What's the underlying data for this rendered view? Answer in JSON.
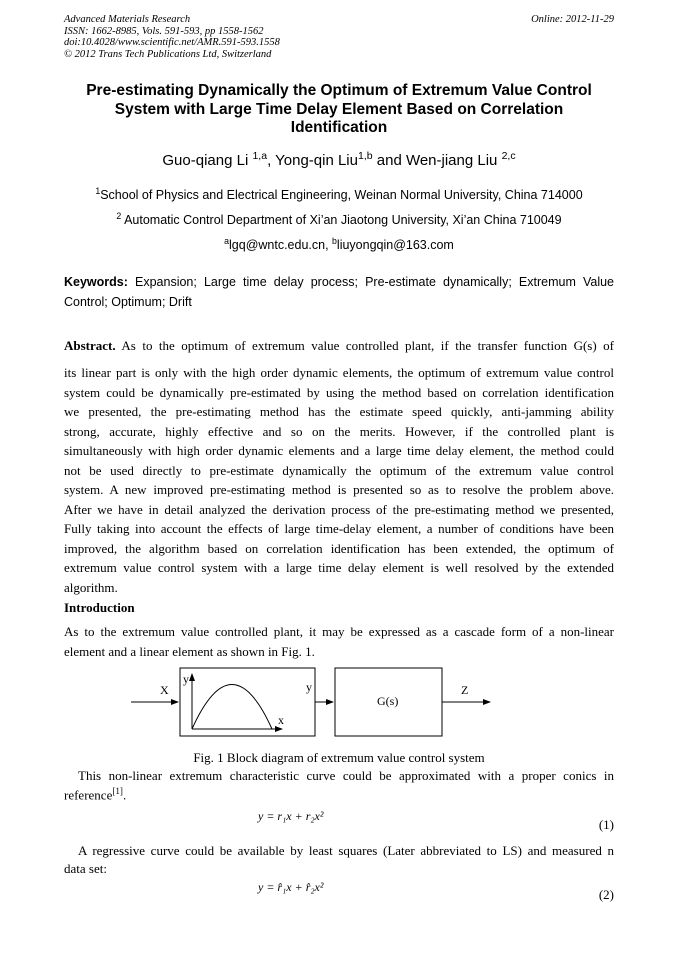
{
  "header": {
    "lines": [
      "Advanced Materials Research",
      "ISSN: 1662-8985, Vols. 591-593, pp 1558-1562",
      "doi:10.4028/www.scientific.net/AMR.591-593.1558",
      "© 2012 Trans Tech Publications Ltd, Switzerland"
    ],
    "online": "Online: 2012-11-29"
  },
  "title": [
    "Pre-estimating Dynamically the Optimum of Extremum Value Control",
    "System with Large Time Delay Element Based on Correlation",
    "Identification"
  ],
  "authors": [
    {
      "name": "Guo-qiang Li ",
      "sup": "1,a"
    },
    {
      "name": ", Yong-qin Liu",
      "sup": "1,b"
    },
    {
      "name": " and Wen-jiang Liu ",
      "sup": "2,c"
    }
  ],
  "affiliations": [
    {
      "sup": "1",
      "text": "School of Physics and Electrical Engineering, Weinan Normal University, China 714000"
    },
    {
      "sup": "2",
      "text": "Automatic Control Department of Xi’an Jiaotong University, Xi’an China 710049"
    }
  ],
  "emails": {
    "a": "a",
    "a_text": "lgq@wntc.edu.cn, ",
    "b": "b",
    "b_text": "liuyongqin@163.com"
  },
  "keywords": {
    "label": "Keywords:",
    "text": " Expansion; Large time delay process; Pre-estimate dynamically; Extremum Value Control; Optimum; Drift"
  },
  "abstract": {
    "label": "Abstract.",
    "first": " As to the optimum of extremum value controlled plant, if the transfer function  G(s)  of",
    "lines": [
      "its linear part is only with the high order dynamic elements, the optimum of extremum value control",
      "system could be dynamically pre-estimated by using the method based on correlation identification",
      "we presented, the pre-estimating method has the estimate speed quickly, anti-jamming ability",
      "strong, accurate, highly effective and so on the merits. However, if the controlled plant is",
      "simultaneously with high order dynamic elements and a large time delay element, the method could",
      "not be used directly to pre-estimate dynamically the optimum of the extremum value control",
      "system. A new improved pre-estimating method is presented so as to resolve the problem above.",
      "After we have in detail analyzed the derivation process of the pre-estimating method we presented,",
      "Fully taking into account the effects of large time-delay element, a number of conditions have been",
      "improved, the algorithm based on correlation identification has been extended, the optimum of",
      "extremum value control system with a large time delay element is well resolved by the extended",
      "algorithm."
    ]
  },
  "introduction": {
    "heading": "Introduction",
    "lines": [
      "As to the extremum value controlled plant, it may be expressed as a cascade form of a non-linear",
      "element and a linear element as shown in Fig. 1."
    ]
  },
  "figure": {
    "input": "X",
    "mid": "y",
    "output": "Z",
    "block": "G(s)",
    "axis_y": "y",
    "axis_x": "x",
    "caption": "Fig. 1 Block diagram of extremum value control system"
  },
  "para2": {
    "lines": [
      "This non-linear extremum characteristic curve could be approximated with a proper conics in"
    ],
    "last": "reference",
    "ref": "[1]",
    "end": "."
  },
  "eq1": {
    "text": "y = r₁x + r₂x²",
    "num": "(1)"
  },
  "para3": {
    "lines": [
      "A regressive curve could be available by least squares (Later abbreviated to LS) and measured n",
      "data set:"
    ]
  },
  "eq2": {
    "text": "y = r̂₁x + r̂₂x²",
    "num": "(2)"
  }
}
